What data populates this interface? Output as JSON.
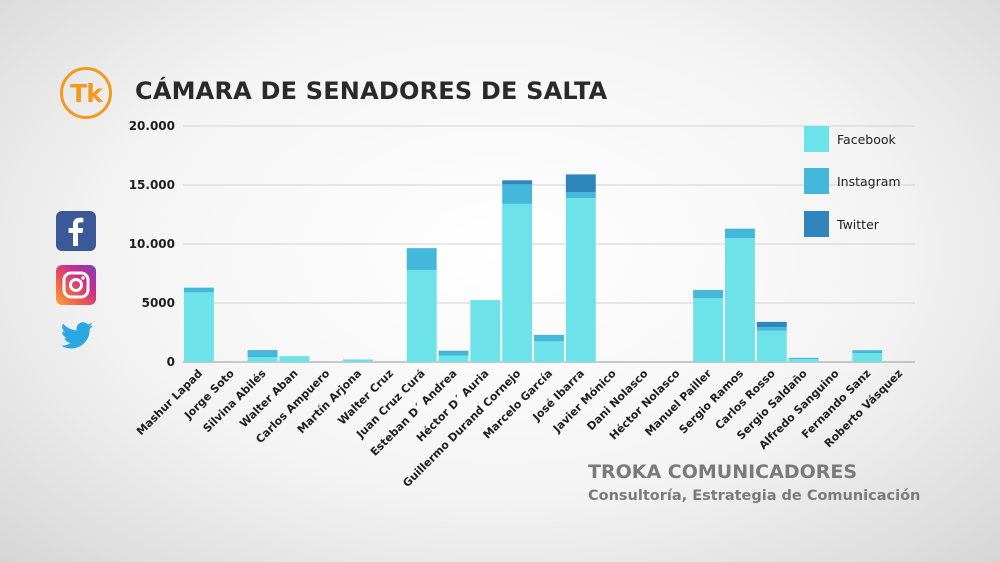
{
  "logo": {
    "text": "Tk",
    "color": "#f39a1e"
  },
  "title": "CÁMARA DE SENADORES DE SALTA",
  "social_icons": [
    "facebook-icon",
    "instagram-icon",
    "twitter-icon"
  ],
  "footer": {
    "brand": "TROKA COMUNICADORES",
    "subtitle": "Consultoría, Estrategia de Comunicación"
  },
  "chart_data": {
    "type": "bar",
    "stacked": true,
    "title": "CÁMARA DE SENADORES DE SALTA",
    "xlabel": "",
    "ylabel": "",
    "ylim": [
      0,
      20000
    ],
    "yticks": [
      0,
      5000,
      10000,
      15000,
      20000
    ],
    "ytick_labels": [
      "0",
      "5000",
      "10.000",
      "15.000",
      "20.000"
    ],
    "grid": true,
    "legend_position": "top-right",
    "categories": [
      "Mashur Lapad",
      "Jorge Soto",
      "Silvina Abilés",
      "Walter Aban",
      "Carlos Ampuero",
      "Martín Arjona",
      "Walter Cruz",
      "Juan Cruz Curá",
      "Esteban D´ Andrea",
      "Héctor D´ Auria",
      "Guillermo Durand Cornejo",
      "Marcelo García",
      "José Ibarra",
      "Javier Mónico",
      "Dani Nolasco",
      "Héctor Nolasco",
      "Manuel Pailler",
      "Sergio Ramos",
      "Carlos Rosso",
      "Sergio Saldaño",
      "Alfredo Sanguino",
      "Fernando Sanz",
      "Roberto Vásquez"
    ],
    "series": [
      {
        "name": "Facebook",
        "color": "#6de3e9",
        "values": [
          5900,
          0,
          400,
          500,
          0,
          150,
          0,
          7800,
          550,
          5250,
          13400,
          1750,
          13900,
          0,
          0,
          0,
          5400,
          10500,
          2650,
          250,
          0,
          750,
          0
        ]
      },
      {
        "name": "Instagram",
        "color": "#44b8da",
        "values": [
          400,
          0,
          550,
          0,
          0,
          50,
          0,
          1850,
          350,
          0,
          1650,
          550,
          500,
          0,
          0,
          0,
          700,
          800,
          300,
          100,
          0,
          250,
          0
        ]
      },
      {
        "name": "Twitter",
        "color": "#2e86bd",
        "values": [
          0,
          0,
          50,
          0,
          0,
          0,
          0,
          0,
          50,
          0,
          350,
          0,
          1500,
          0,
          0,
          0,
          0,
          0,
          450,
          0,
          0,
          0,
          0
        ]
      }
    ]
  }
}
